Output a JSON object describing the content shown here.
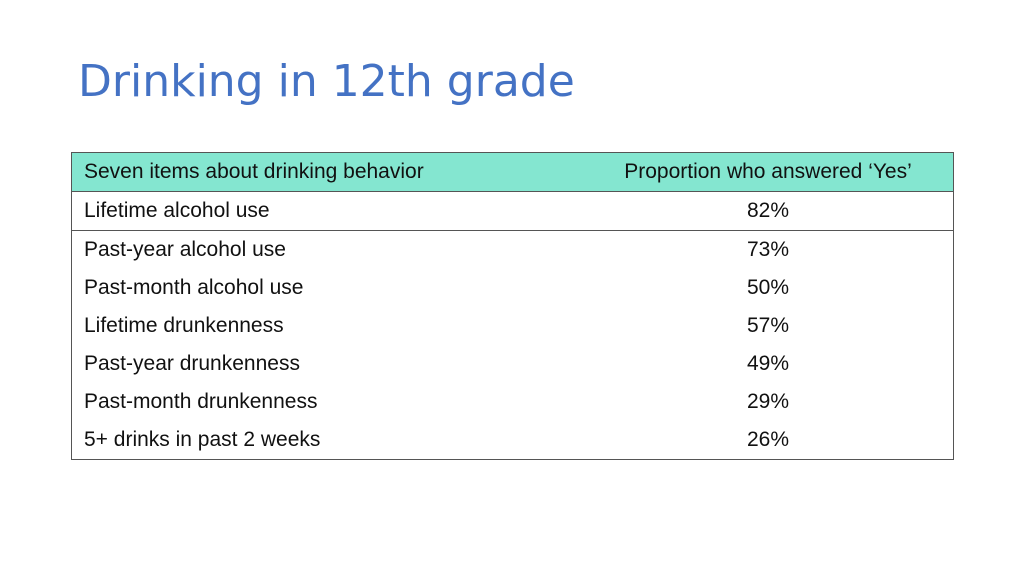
{
  "title": "Drinking in 12th grade",
  "table": {
    "header": [
      "Seven items about drinking behavior",
      "Proportion who answered ‘Yes’"
    ],
    "rows": [
      [
        "Lifetime alcohol use",
        "82%"
      ],
      [
        "Past-year alcohol use",
        "73%"
      ],
      [
        "Past-month alcohol use",
        "50%"
      ],
      [
        "Lifetime drunkenness",
        "57%"
      ],
      [
        "Past-year drunkenness",
        "49%"
      ],
      [
        "Past-month drunkenness",
        "29%"
      ],
      [
        "5+ drinks in past 2 weeks",
        "26%"
      ]
    ]
  }
}
